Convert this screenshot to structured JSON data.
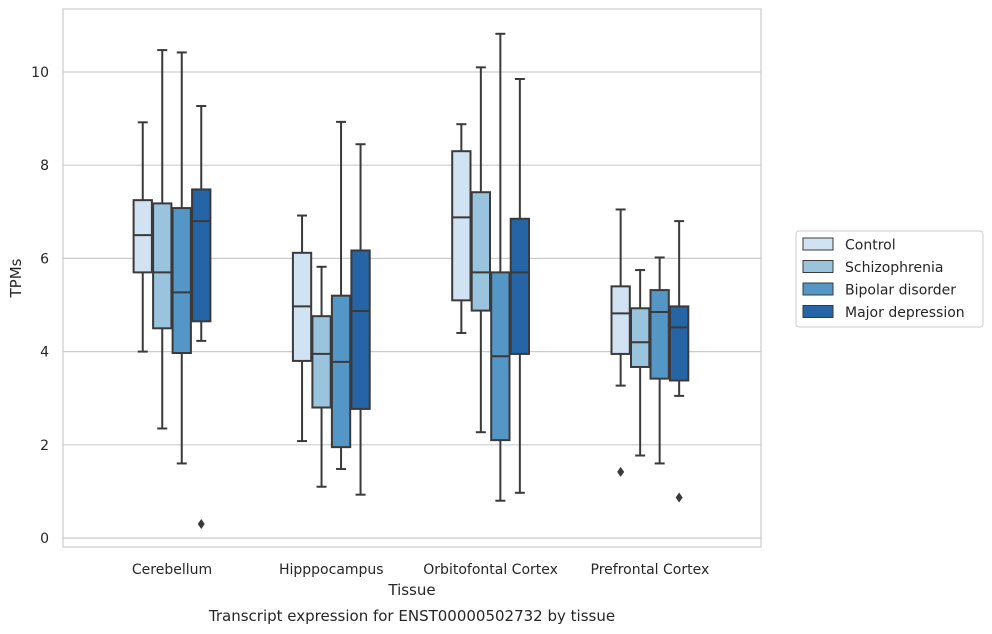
{
  "chart_data": {
    "type": "box",
    "caption": "Transcript expression for ENST00000502732 by tissue",
    "xlabel": "Tissue",
    "ylabel": "TPMs",
    "ylim": [
      -0.2,
      11.3
    ],
    "yticks": [
      0,
      2,
      4,
      6,
      8,
      10
    ],
    "grid": "horizontal",
    "legend_position": "right",
    "categories": [
      "Cerebellum",
      "Hipppocampus",
      "Orbitofontal Cortex",
      "Prefrontal Cortex"
    ],
    "series": [
      {
        "name": "Control",
        "color": "#d1e2f2",
        "boxes": [
          {
            "whislo": 4.0,
            "q1": 5.7,
            "med": 6.5,
            "q3": 7.25,
            "whishi": 8.92,
            "fliers": []
          },
          {
            "whislo": 2.08,
            "q1": 3.8,
            "med": 4.97,
            "q3": 6.12,
            "whishi": 6.92,
            "fliers": []
          },
          {
            "whislo": 4.4,
            "q1": 5.1,
            "med": 6.88,
            "q3": 8.3,
            "whishi": 8.88,
            "fliers": []
          },
          {
            "whislo": 3.27,
            "q1": 3.95,
            "med": 4.82,
            "q3": 5.4,
            "whishi": 7.05,
            "fliers": [
              1.42
            ]
          }
        ]
      },
      {
        "name": "Schizophrenia",
        "color": "#9ac3de",
        "boxes": [
          {
            "whislo": 2.35,
            "q1": 4.5,
            "med": 5.7,
            "q3": 7.18,
            "whishi": 10.47,
            "fliers": []
          },
          {
            "whislo": 1.1,
            "q1": 2.8,
            "med": 3.95,
            "q3": 4.76,
            "whishi": 5.82,
            "fliers": []
          },
          {
            "whislo": 2.27,
            "q1": 4.88,
            "med": 5.7,
            "q3": 7.42,
            "whishi": 10.1,
            "fliers": []
          },
          {
            "whislo": 1.77,
            "q1": 3.67,
            "med": 4.2,
            "q3": 4.93,
            "whishi": 5.75,
            "fliers": []
          }
        ]
      },
      {
        "name": "Bipolar disorder",
        "color": "#5496c6",
        "boxes": [
          {
            "whislo": 1.6,
            "q1": 3.97,
            "med": 5.27,
            "q3": 7.08,
            "whishi": 10.42,
            "fliers": []
          },
          {
            "whislo": 1.48,
            "q1": 1.95,
            "med": 3.78,
            "q3": 5.2,
            "whishi": 8.93,
            "fliers": []
          },
          {
            "whislo": 0.8,
            "q1": 2.1,
            "med": 3.9,
            "q3": 5.7,
            "whishi": 10.82,
            "fliers": []
          },
          {
            "whislo": 1.6,
            "q1": 3.42,
            "med": 4.85,
            "q3": 5.32,
            "whishi": 6.02,
            "fliers": []
          }
        ]
      },
      {
        "name": "Major depression",
        "color": "#2564a5",
        "boxes": [
          {
            "whislo": 4.23,
            "q1": 4.65,
            "med": 6.8,
            "q3": 7.48,
            "whishi": 9.27,
            "fliers": [
              0.3
            ]
          },
          {
            "whislo": 0.93,
            "q1": 2.77,
            "med": 4.87,
            "q3": 6.17,
            "whishi": 8.45,
            "fliers": []
          },
          {
            "whislo": 0.97,
            "q1": 3.95,
            "med": 5.7,
            "q3": 6.85,
            "whishi": 9.85,
            "fliers": []
          },
          {
            "whislo": 3.05,
            "q1": 3.38,
            "med": 4.52,
            "q3": 4.97,
            "whishi": 6.8,
            "fliers": [
              0.87
            ]
          }
        ]
      }
    ]
  }
}
